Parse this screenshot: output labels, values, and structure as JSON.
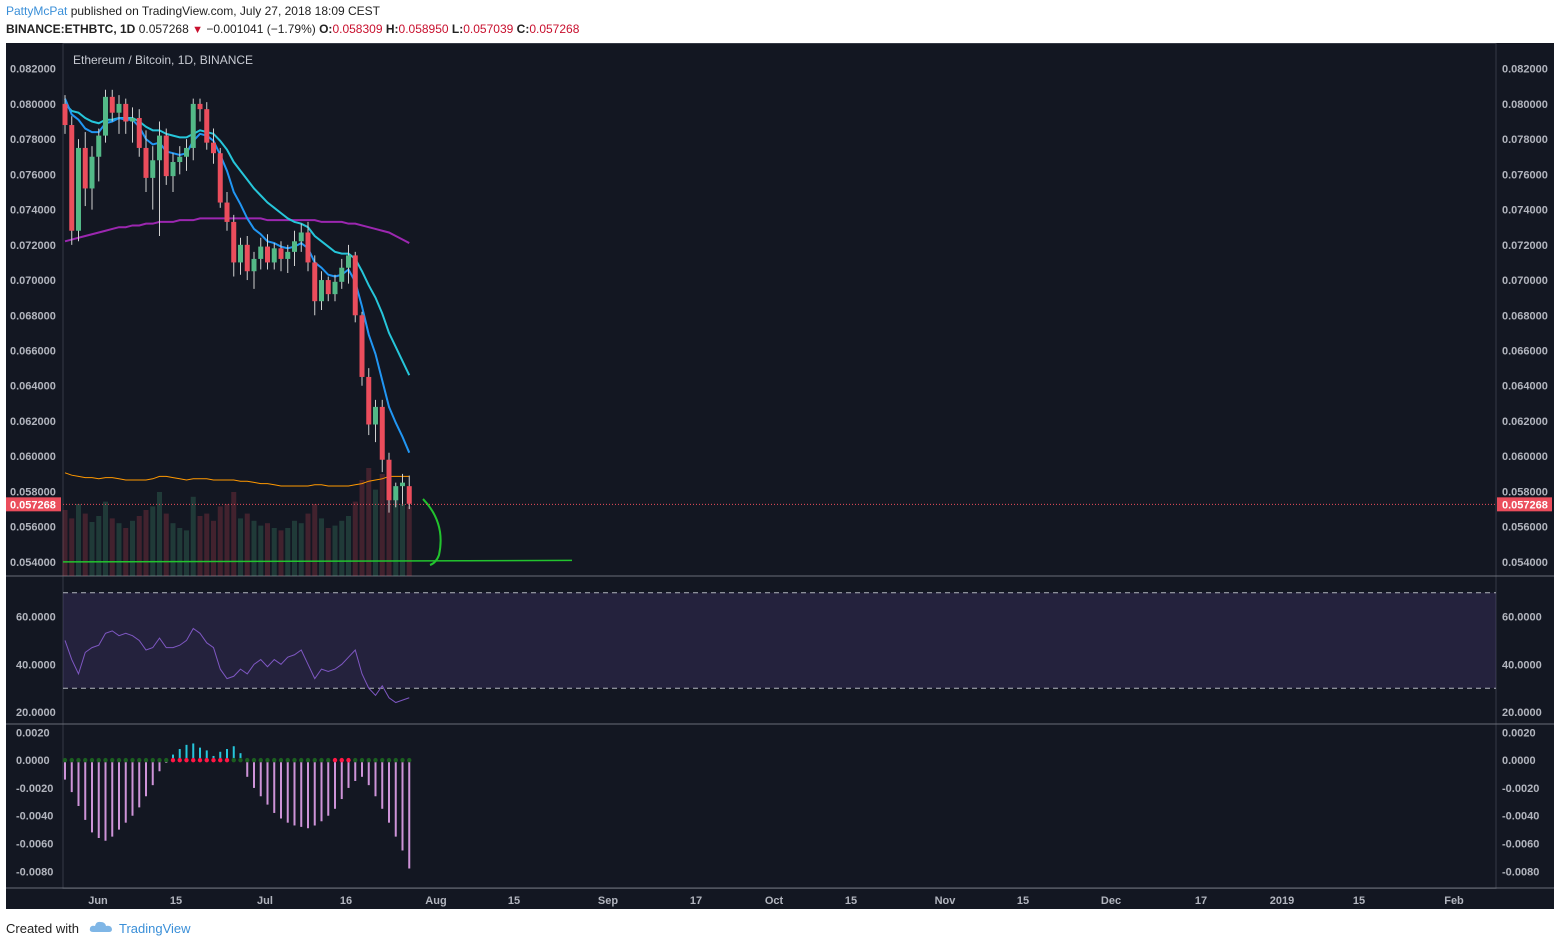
{
  "header": {
    "author": "PattyMcPat",
    "published": "published on TradingView.com, July 27, 2018 18:09 CEST",
    "symbol": "BINANCE:ETHBTC, 1D",
    "last": "0.057268",
    "change": "−0.001041 (−1.79%)",
    "o_label": "O:",
    "o_val": "0.058309",
    "h_label": "H:",
    "h_val": "0.058950",
    "l_label": "L:",
    "l_val": "0.057039",
    "c_label": "C:",
    "c_val": "0.057268"
  },
  "footer": {
    "created_with": "Created with",
    "brand": "TradingView"
  },
  "colors": {
    "bg": "#131722",
    "up": "#53b987",
    "down": "#eb4d5c",
    "ema_fast": "#2196f3",
    "ema_mid": "#26c6da",
    "ma_slow": "#9c27b0",
    "vol_ma": "#ff9800",
    "rsi": "#7e57c2",
    "support": "#22c32e",
    "price_label": "#eb4d5c"
  },
  "chart_data": [
    {
      "type": "candlestick",
      "title": "Ethereum / Bitcoin, 1D, BINANCE",
      "ylim": [
        0.0532,
        0.0834
      ],
      "y_ticks": [
        "0.082000",
        "0.080000",
        "0.078000",
        "0.076000",
        "0.074000",
        "0.072000",
        "0.070000",
        "0.068000",
        "0.066000",
        "0.064000",
        "0.062000",
        "0.060000",
        "0.058000",
        "0.056000",
        "0.054000"
      ],
      "last_price_label": "0.057268",
      "x_labels": [
        "Jun",
        "15",
        "Jul",
        "16",
        "Aug",
        "15",
        "Sep",
        "17",
        "Oct",
        "15",
        "Nov",
        "15",
        "Dec",
        "17",
        "2019",
        "15",
        "Feb"
      ],
      "ohlc": [
        [
          0.08,
          0.0805,
          0.0783,
          0.0788
        ],
        [
          0.0788,
          0.0793,
          0.072,
          0.0728
        ],
        [
          0.0728,
          0.078,
          0.0722,
          0.0775
        ],
        [
          0.0775,
          0.0784,
          0.0742,
          0.0752
        ],
        [
          0.0752,
          0.0776,
          0.074,
          0.077
        ],
        [
          0.077,
          0.0786,
          0.0756,
          0.0782
        ],
        [
          0.0782,
          0.0808,
          0.0778,
          0.0804
        ],
        [
          0.0804,
          0.0808,
          0.079,
          0.0795
        ],
        [
          0.0795,
          0.0805,
          0.0783,
          0.08
        ],
        [
          0.08,
          0.0803,
          0.0783,
          0.079
        ],
        [
          0.079,
          0.0798,
          0.0778,
          0.0792
        ],
        [
          0.0792,
          0.0797,
          0.077,
          0.0775
        ],
        [
          0.0775,
          0.0785,
          0.075,
          0.0758
        ],
        [
          0.0758,
          0.0776,
          0.074,
          0.0768
        ],
        [
          0.0768,
          0.079,
          0.0725,
          0.0782
        ],
        [
          0.0782,
          0.0786,
          0.0754,
          0.0759
        ],
        [
          0.0759,
          0.0772,
          0.075,
          0.0767
        ],
        [
          0.0767,
          0.0776,
          0.076,
          0.077
        ],
        [
          0.077,
          0.078,
          0.0762,
          0.0775
        ],
        [
          0.0775,
          0.0803,
          0.0768,
          0.08
        ],
        [
          0.08,
          0.0803,
          0.079,
          0.0797
        ],
        [
          0.0797,
          0.0801,
          0.0774,
          0.0778
        ],
        [
          0.0778,
          0.0786,
          0.0766,
          0.0772
        ],
        [
          0.0772,
          0.0775,
          0.0741,
          0.0744
        ],
        [
          0.0744,
          0.075,
          0.0728,
          0.0733
        ],
        [
          0.0733,
          0.0737,
          0.0702,
          0.071
        ],
        [
          0.071,
          0.0724,
          0.0703,
          0.072
        ],
        [
          0.072,
          0.0725,
          0.07,
          0.0705
        ],
        [
          0.0705,
          0.0716,
          0.0695,
          0.0712
        ],
        [
          0.0712,
          0.0724,
          0.0706,
          0.0719
        ],
        [
          0.0719,
          0.0726,
          0.0706,
          0.071
        ],
        [
          0.071,
          0.0721,
          0.0706,
          0.0718
        ],
        [
          0.0718,
          0.0722,
          0.0705,
          0.0712
        ],
        [
          0.0712,
          0.072,
          0.0704,
          0.0716
        ],
        [
          0.0716,
          0.0728,
          0.0708,
          0.0722
        ],
        [
          0.0722,
          0.0732,
          0.0716,
          0.0727
        ],
        [
          0.0727,
          0.0733,
          0.0705,
          0.071
        ],
        [
          0.071,
          0.0714,
          0.068,
          0.0688
        ],
        [
          0.0688,
          0.0705,
          0.0683,
          0.07
        ],
        [
          0.07,
          0.0702,
          0.0688,
          0.0692
        ],
        [
          0.0692,
          0.0703,
          0.0688,
          0.0699
        ],
        [
          0.0699,
          0.0712,
          0.0695,
          0.0707
        ],
        [
          0.0707,
          0.072,
          0.0698,
          0.0714
        ],
        [
          0.0714,
          0.0716,
          0.0676,
          0.068
        ],
        [
          0.068,
          0.0682,
          0.064,
          0.0645
        ],
        [
          0.0645,
          0.065,
          0.0612,
          0.0618
        ],
        [
          0.0618,
          0.0632,
          0.0608,
          0.0628
        ],
        [
          0.0628,
          0.0632,
          0.0591,
          0.0598
        ],
        [
          0.0598,
          0.0602,
          0.0568,
          0.0575
        ],
        [
          0.0575,
          0.0585,
          0.0571,
          0.0583
        ],
        [
          0.0583,
          0.059,
          0.0572,
          0.0585
        ],
        [
          0.0583,
          0.0589,
          0.057,
          0.0573
        ]
      ],
      "ema_fast": [
        0.0803,
        0.0794,
        0.0791,
        0.0786,
        0.0784,
        0.0784,
        0.0789,
        0.079,
        0.0792,
        0.0791,
        0.0791,
        0.0787,
        0.078,
        0.0777,
        0.0778,
        0.0773,
        0.0772,
        0.0771,
        0.0772,
        0.0779,
        0.0783,
        0.0782,
        0.0779,
        0.0771,
        0.0762,
        0.075,
        0.0743,
        0.0735,
        0.0729,
        0.0726,
        0.0722,
        0.0721,
        0.0719,
        0.0718,
        0.0719,
        0.0721,
        0.0718,
        0.071,
        0.0707,
        0.0703,
        0.0702,
        0.0703,
        0.0706,
        0.0699,
        0.0685,
        0.0669,
        0.0658,
        0.0643,
        0.0628,
        0.0619,
        0.0611,
        0.0602
      ],
      "ema_mid": [
        0.08,
        0.0796,
        0.0795,
        0.0792,
        0.079,
        0.0789,
        0.0791,
        0.0791,
        0.0792,
        0.0792,
        0.0792,
        0.079,
        0.0787,
        0.0785,
        0.0785,
        0.0783,
        0.0782,
        0.0781,
        0.0781,
        0.0783,
        0.0785,
        0.0784,
        0.0783,
        0.0779,
        0.0774,
        0.0767,
        0.0762,
        0.0757,
        0.0752,
        0.0748,
        0.0744,
        0.0741,
        0.0738,
        0.0735,
        0.0733,
        0.0732,
        0.073,
        0.0725,
        0.0722,
        0.0719,
        0.0716,
        0.0715,
        0.0715,
        0.0712,
        0.0705,
        0.0697,
        0.069,
        0.0681,
        0.067,
        0.0662,
        0.0654,
        0.0646
      ],
      "ma_slow": [
        0.0722,
        0.0723,
        0.0724,
        0.0725,
        0.0726,
        0.0727,
        0.0728,
        0.0729,
        0.073,
        0.073,
        0.0731,
        0.0731,
        0.0732,
        0.0732,
        0.0733,
        0.0733,
        0.0733,
        0.0734,
        0.0734,
        0.0734,
        0.0735,
        0.0735,
        0.0735,
        0.0735,
        0.0735,
        0.0735,
        0.0735,
        0.0735,
        0.0735,
        0.0735,
        0.0734,
        0.0734,
        0.0734,
        0.0734,
        0.0734,
        0.0734,
        0.0734,
        0.0734,
        0.0733,
        0.0733,
        0.0733,
        0.0733,
        0.0732,
        0.0732,
        0.0731,
        0.073,
        0.0729,
        0.0728,
        0.0727,
        0.0725,
        0.0723,
        0.0721
      ],
      "volume": [
        0.55,
        0.48,
        0.6,
        0.52,
        0.45,
        0.5,
        0.62,
        0.48,
        0.44,
        0.4,
        0.46,
        0.5,
        0.55,
        0.58,
        0.7,
        0.52,
        0.44,
        0.4,
        0.38,
        0.66,
        0.5,
        0.52,
        0.46,
        0.58,
        0.6,
        0.7,
        0.48,
        0.52,
        0.46,
        0.42,
        0.44,
        0.4,
        0.38,
        0.4,
        0.46,
        0.44,
        0.52,
        0.6,
        0.48,
        0.4,
        0.42,
        0.46,
        0.5,
        0.62,
        0.8,
        0.9,
        0.72,
        0.85,
        0.92,
        0.66,
        0.6,
        0.58
      ],
      "volume_ma": [
        0.86,
        0.84,
        0.83,
        0.82,
        0.82,
        0.81,
        0.82,
        0.82,
        0.81,
        0.8,
        0.8,
        0.8,
        0.8,
        0.81,
        0.83,
        0.83,
        0.82,
        0.81,
        0.8,
        0.81,
        0.81,
        0.81,
        0.8,
        0.8,
        0.8,
        0.8,
        0.79,
        0.79,
        0.78,
        0.77,
        0.77,
        0.76,
        0.75,
        0.75,
        0.75,
        0.75,
        0.75,
        0.76,
        0.76,
        0.75,
        0.75,
        0.75,
        0.75,
        0.76,
        0.77,
        0.79,
        0.8,
        0.81,
        0.83,
        0.83,
        0.83,
        0.83
      ],
      "support_level": 0.054
    },
    {
      "type": "line",
      "name": "RSI",
      "ylim": [
        15,
        77
      ],
      "y_ticks": [
        "60.0000",
        "40.0000",
        "20.0000"
      ],
      "bands": [
        70,
        30
      ],
      "values": [
        50,
        42,
        36,
        45,
        47,
        48,
        53,
        54,
        52,
        53,
        52,
        50,
        46,
        47,
        51,
        47,
        47,
        48,
        50,
        55,
        53,
        49,
        47,
        38,
        34,
        35,
        38,
        36,
        40,
        42,
        39,
        42,
        40,
        43,
        44,
        46,
        40,
        34,
        38,
        37,
        38,
        40,
        43,
        46,
        36,
        30,
        27,
        31,
        26,
        24,
        25,
        26
      ]
    },
    {
      "type": "bar",
      "name": "Histogram",
      "ylim": [
        -0.0092,
        0.0026
      ],
      "y_ticks": [
        "0.0020",
        "0.0000",
        "-0.0020",
        "-0.0040",
        "-0.0060",
        "-0.0080"
      ],
      "values": [
        -0.0014,
        -0.0023,
        -0.0033,
        -0.0043,
        -0.0052,
        -0.0056,
        -0.0058,
        -0.0055,
        -0.005,
        -0.0045,
        -0.004,
        -0.0034,
        -0.0026,
        -0.0018,
        -0.0008,
        -0.0002,
        0.0004,
        0.0008,
        0.0011,
        0.0012,
        0.0009,
        0.0007,
        0.0003,
        0.0006,
        0.0008,
        0.001,
        0.0005,
        -0.0012,
        -0.002,
        -0.0026,
        -0.0032,
        -0.0038,
        -0.0042,
        -0.0045,
        -0.0047,
        -0.0048,
        -0.0049,
        -0.0047,
        -0.0044,
        -0.004,
        -0.0035,
        -0.0028,
        -0.002,
        -0.0015,
        -0.0012,
        -0.0018,
        -0.0026,
        -0.0035,
        -0.0045,
        -0.0055,
        -0.0065,
        -0.0078
      ],
      "zero_dots": [
        0,
        0,
        0,
        0,
        0,
        0,
        0,
        0,
        0,
        0,
        0,
        0,
        0,
        0,
        0,
        0,
        0,
        0,
        0,
        0,
        0,
        0,
        0,
        0,
        0,
        0,
        0,
        0,
        0,
        0,
        0,
        0,
        0,
        0,
        0,
        0,
        0,
        0,
        0,
        0,
        0,
        0,
        0,
        0,
        0,
        0,
        0,
        0,
        0,
        0,
        0,
        0
      ]
    }
  ]
}
